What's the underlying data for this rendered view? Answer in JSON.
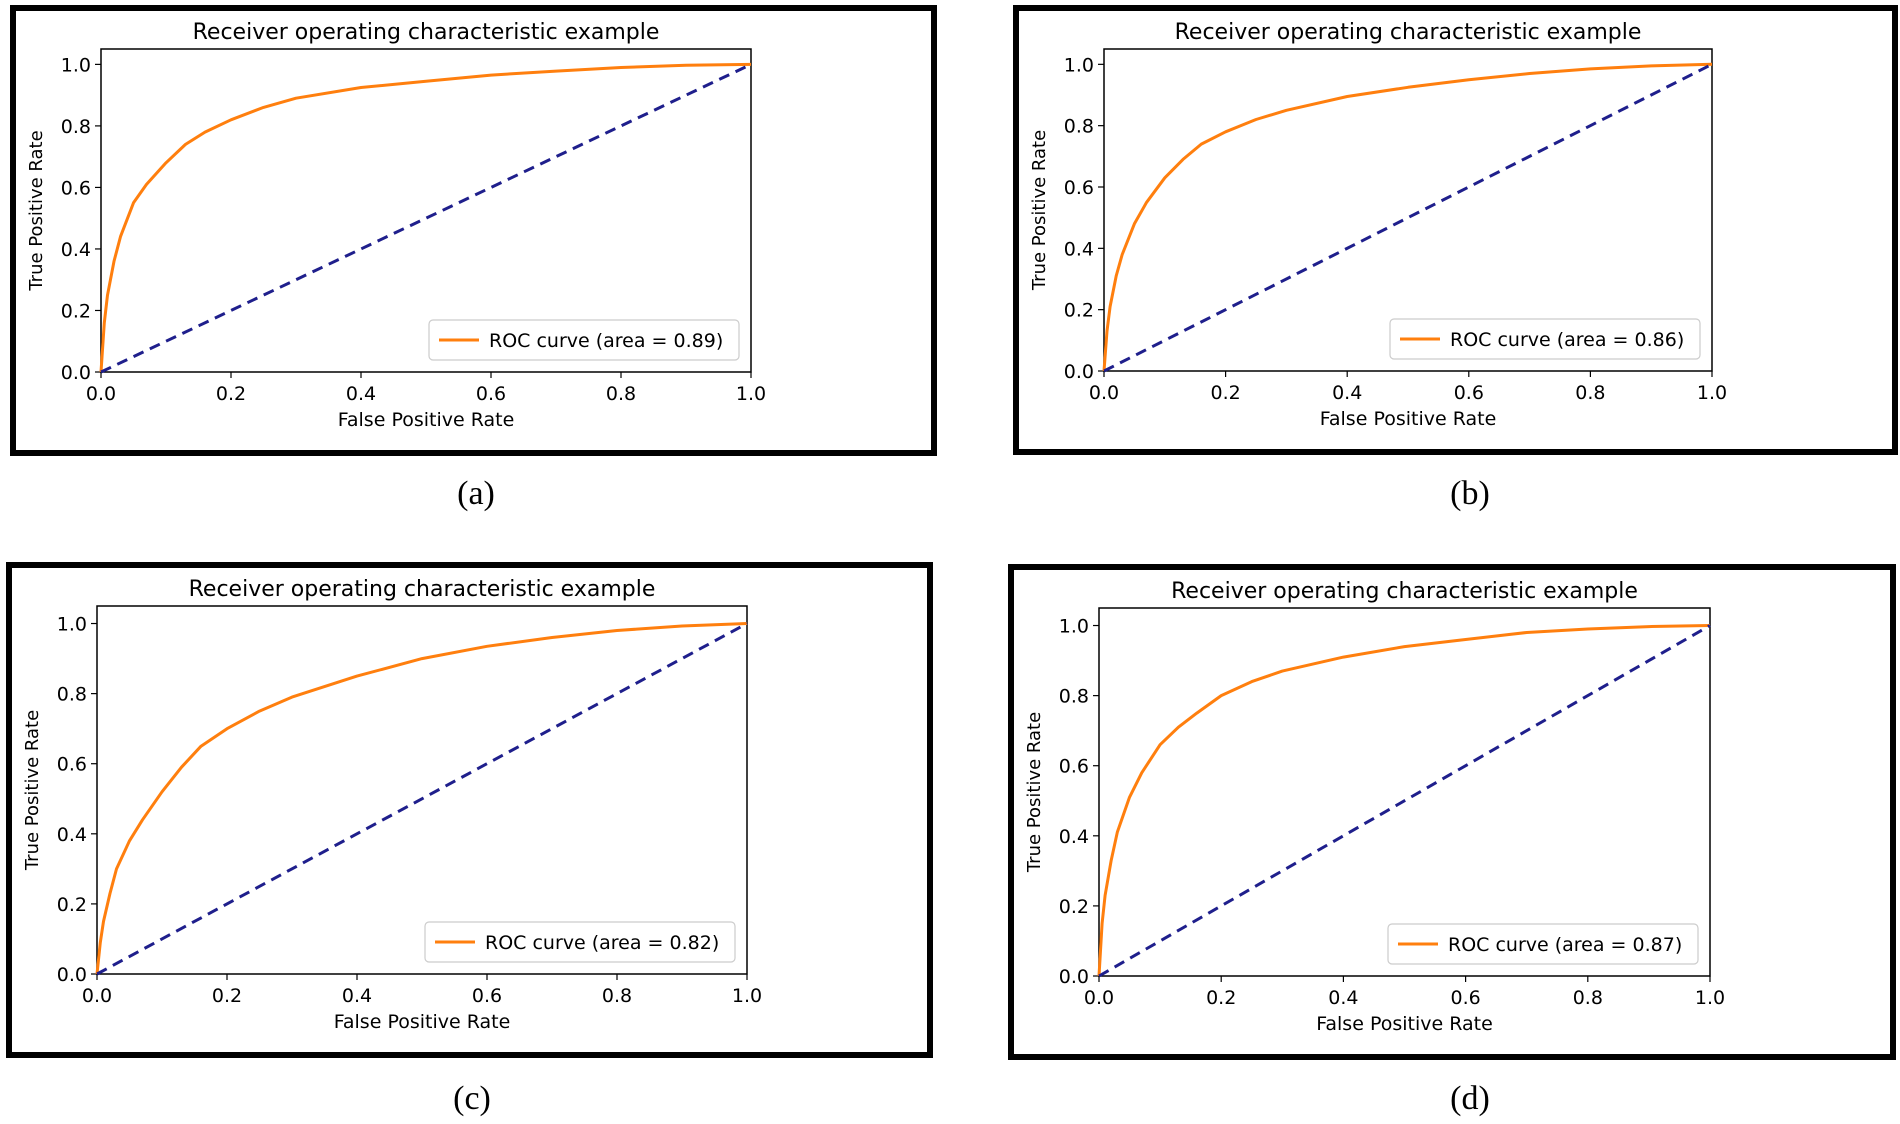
{
  "colors": {
    "roc": "#ff7f0e",
    "chance": "#1f1f8c",
    "frame": "#000000"
  },
  "panels": [
    {
      "id": "a",
      "caption": "(a)",
      "chart_data": {
        "type": "line",
        "title": "Receiver operating characteristic example",
        "xlabel": "False Positive Rate",
        "ylabel": "True Positive Rate",
        "xlim": [
          0.0,
          1.0
        ],
        "ylim": [
          0.0,
          1.05
        ],
        "xticks": [
          "0.0",
          "0.2",
          "0.4",
          "0.6",
          "0.8",
          "1.0"
        ],
        "yticks": [
          "0.0",
          "0.2",
          "0.4",
          "0.6",
          "0.8",
          "1.0"
        ],
        "legend": "lower right",
        "series": [
          {
            "name": "ROC curve (area = 0.89)",
            "style": "solid",
            "color": "#ff7f0e",
            "x": [
              0,
              0.005,
              0.01,
              0.02,
              0.03,
              0.05,
              0.07,
              0.1,
              0.13,
              0.16,
              0.2,
              0.25,
              0.3,
              0.4,
              0.5,
              0.6,
              0.7,
              0.8,
              0.9,
              1.0
            ],
            "y": [
              0,
              0.16,
              0.25,
              0.36,
              0.44,
              0.55,
              0.61,
              0.68,
              0.74,
              0.78,
              0.82,
              0.86,
              0.89,
              0.925,
              0.945,
              0.965,
              0.978,
              0.99,
              0.997,
              1.0
            ]
          },
          {
            "name": "",
            "style": "dashed",
            "color": "#1f1f8c",
            "x": [
              0,
              1
            ],
            "y": [
              0,
              1
            ]
          }
        ]
      }
    },
    {
      "id": "b",
      "caption": "(b)",
      "chart_data": {
        "type": "line",
        "title": "Receiver operating characteristic example",
        "xlabel": "False Positive Rate",
        "ylabel": "True Positive Rate",
        "xlim": [
          0.0,
          1.0
        ],
        "ylim": [
          0.0,
          1.05
        ],
        "xticks": [
          "0.0",
          "0.2",
          "0.4",
          "0.6",
          "0.8",
          "1.0"
        ],
        "yticks": [
          "0.0",
          "0.2",
          "0.4",
          "0.6",
          "0.8",
          "1.0"
        ],
        "legend": "lower right",
        "series": [
          {
            "name": "ROC curve (area = 0.86)",
            "style": "solid",
            "color": "#ff7f0e",
            "x": [
              0,
              0.005,
              0.01,
              0.02,
              0.03,
              0.05,
              0.07,
              0.1,
              0.13,
              0.16,
              0.2,
              0.25,
              0.3,
              0.4,
              0.5,
              0.6,
              0.7,
              0.8,
              0.9,
              1.0
            ],
            "y": [
              0,
              0.13,
              0.21,
              0.31,
              0.38,
              0.48,
              0.55,
              0.63,
              0.69,
              0.74,
              0.78,
              0.82,
              0.85,
              0.895,
              0.925,
              0.95,
              0.97,
              0.985,
              0.995,
              1.0
            ]
          },
          {
            "name": "",
            "style": "dashed",
            "color": "#1f1f8c",
            "x": [
              0,
              1
            ],
            "y": [
              0,
              1
            ]
          }
        ]
      }
    },
    {
      "id": "c",
      "caption": "(c)",
      "chart_data": {
        "type": "line",
        "title": "Receiver operating characteristic example",
        "xlabel": "False Positive Rate",
        "ylabel": "True Positive Rate",
        "xlim": [
          0.0,
          1.0
        ],
        "ylim": [
          0.0,
          1.05
        ],
        "xticks": [
          "0.0",
          "0.2",
          "0.4",
          "0.6",
          "0.8",
          "1.0"
        ],
        "yticks": [
          "0.0",
          "0.2",
          "0.4",
          "0.6",
          "0.8",
          "1.0"
        ],
        "legend": "lower right",
        "series": [
          {
            "name": "ROC curve (area = 0.82)",
            "style": "solid",
            "color": "#ff7f0e",
            "x": [
              0,
              0.005,
              0.01,
              0.02,
              0.03,
              0.05,
              0.07,
              0.1,
              0.13,
              0.16,
              0.2,
              0.25,
              0.3,
              0.4,
              0.5,
              0.6,
              0.7,
              0.8,
              0.9,
              1.0
            ],
            "y": [
              0,
              0.09,
              0.15,
              0.23,
              0.3,
              0.38,
              0.44,
              0.52,
              0.59,
              0.65,
              0.7,
              0.75,
              0.79,
              0.85,
              0.9,
              0.935,
              0.96,
              0.98,
              0.993,
              1.0
            ]
          },
          {
            "name": "",
            "style": "dashed",
            "color": "#1f1f8c",
            "x": [
              0,
              1
            ],
            "y": [
              0,
              1
            ]
          }
        ]
      }
    },
    {
      "id": "d",
      "caption": "(d)",
      "chart_data": {
        "type": "line",
        "title": "Receiver operating characteristic example",
        "xlabel": "False Positive Rate",
        "ylabel": "True Positive Rate",
        "xlim": [
          0.0,
          1.0
        ],
        "ylim": [
          0.0,
          1.05
        ],
        "xticks": [
          "0.0",
          "0.2",
          "0.4",
          "0.6",
          "0.8",
          "1.0"
        ],
        "yticks": [
          "0.0",
          "0.2",
          "0.4",
          "0.6",
          "0.8",
          "1.0"
        ],
        "legend": "lower right",
        "series": [
          {
            "name": "ROC curve (area = 0.87)",
            "style": "solid",
            "color": "#ff7f0e",
            "x": [
              0,
              0.005,
              0.01,
              0.02,
              0.03,
              0.05,
              0.07,
              0.1,
              0.13,
              0.16,
              0.2,
              0.25,
              0.3,
              0.4,
              0.5,
              0.6,
              0.7,
              0.8,
              0.9,
              1.0
            ],
            "y": [
              0,
              0.15,
              0.23,
              0.33,
              0.41,
              0.51,
              0.58,
              0.66,
              0.71,
              0.75,
              0.8,
              0.84,
              0.87,
              0.91,
              0.94,
              0.96,
              0.98,
              0.99,
              0.997,
              1.0
            ]
          },
          {
            "name": "",
            "style": "dashed",
            "color": "#1f1f8c",
            "x": [
              0,
              1
            ],
            "y": [
              0,
              1
            ]
          }
        ]
      }
    }
  ]
}
